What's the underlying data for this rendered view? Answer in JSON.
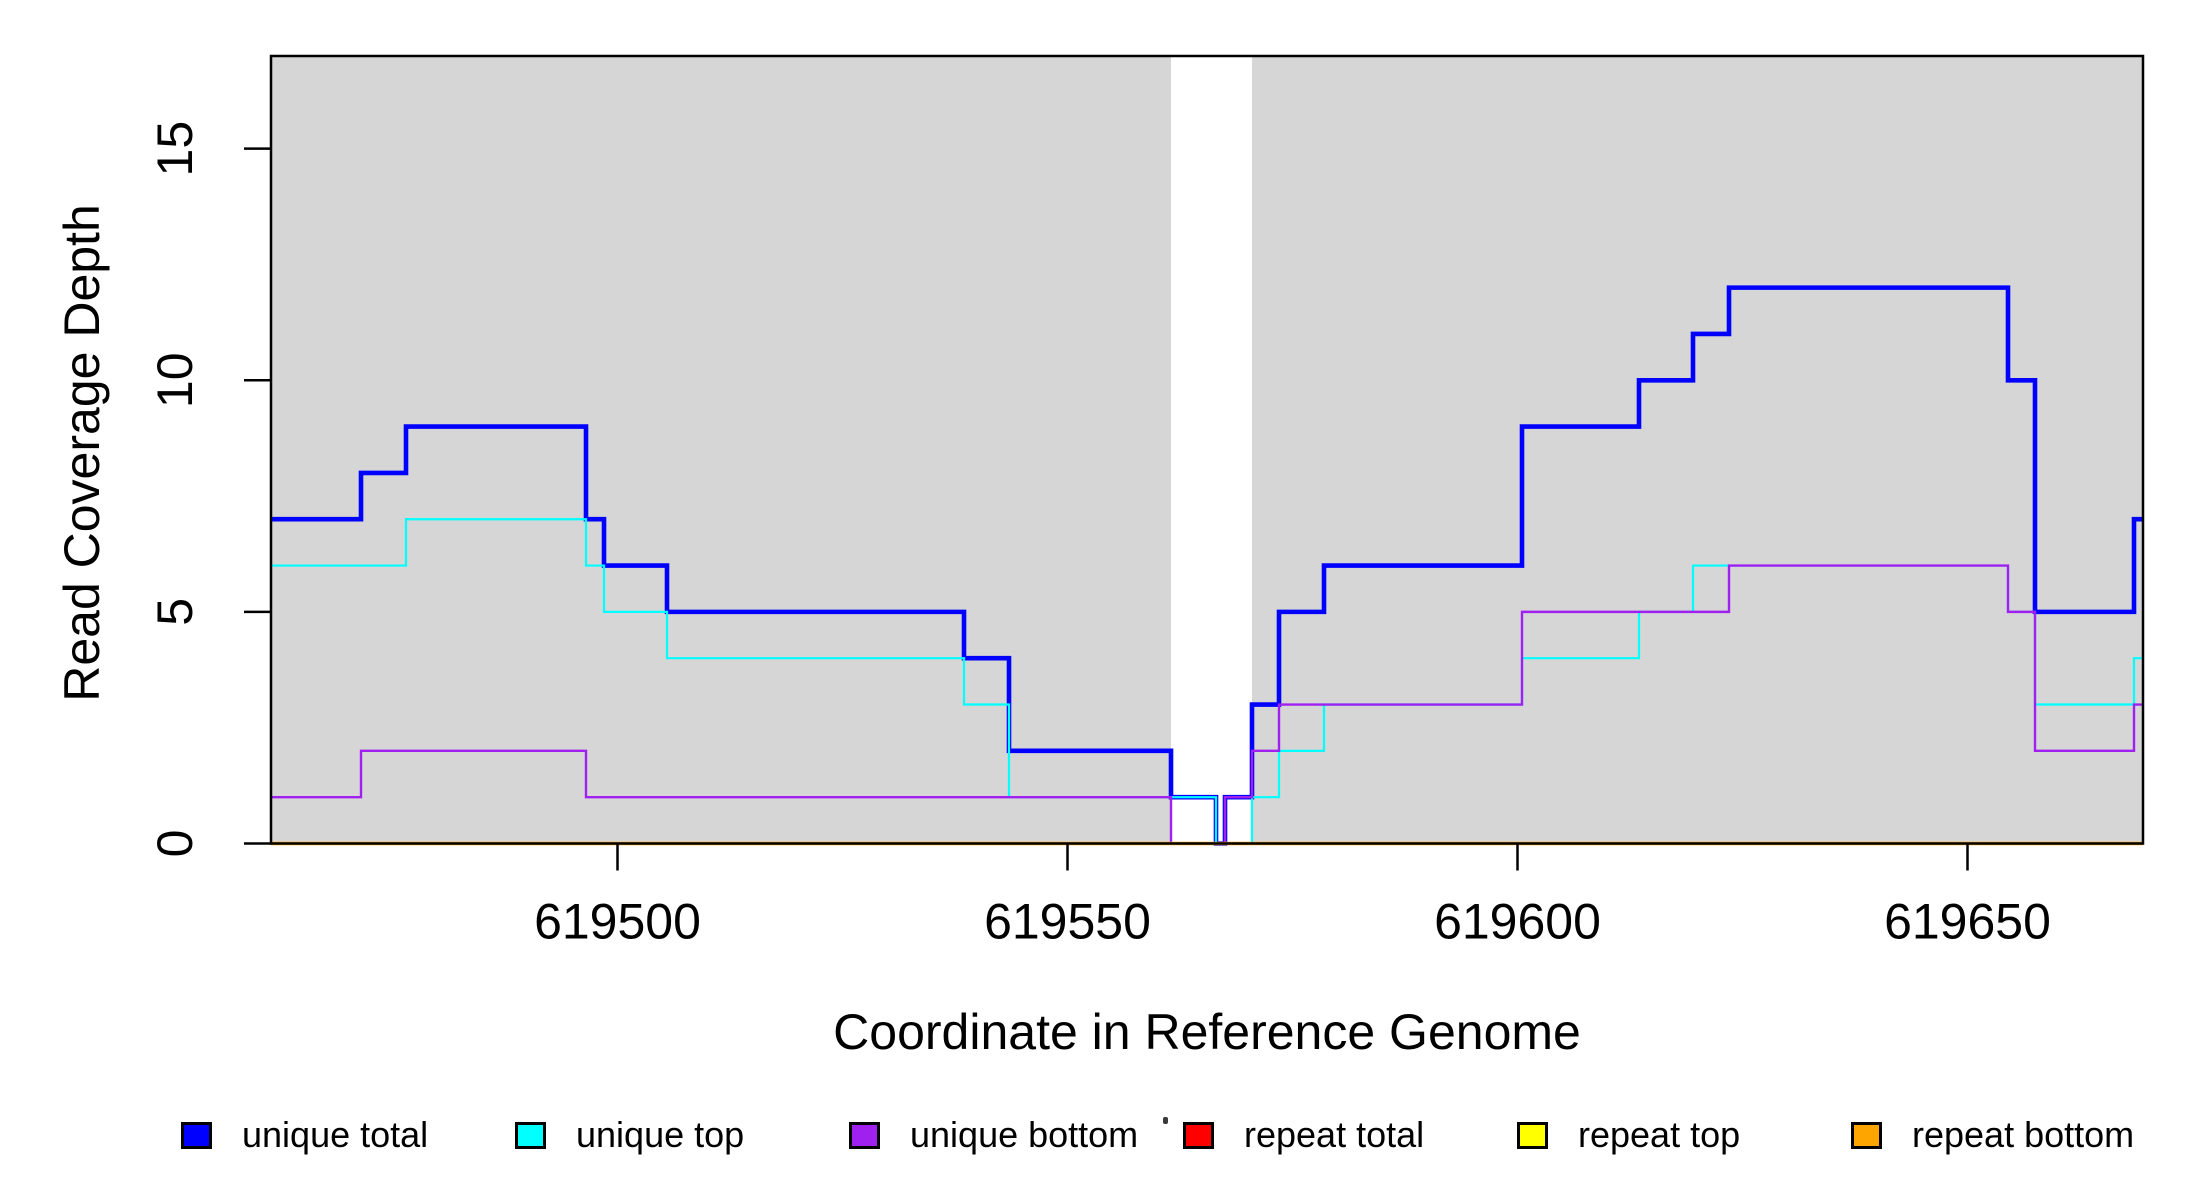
{
  "figure": {
    "background": "#ffffff",
    "plot_bg_color": "#d6d6d6",
    "border_color": "#000000"
  },
  "axes": {
    "x": {
      "title": "Coordinate in Reference Genome",
      "tick_values": [
        619500,
        619550,
        619600,
        619650
      ],
      "tick_labels": [
        "619500",
        "619550",
        "619600",
        "619650"
      ],
      "range": [
        619461.5,
        619669.5
      ]
    },
    "y": {
      "title": "Read Coverage Depth",
      "tick_values": [
        0,
        5,
        10,
        15
      ],
      "tick_labels": [
        "0",
        "5",
        "10",
        "15"
      ],
      "range": [
        0,
        17
      ]
    }
  },
  "plot": {
    "gap_region": {
      "from": 619561.5,
      "to": 619570.5,
      "color": "#ffffff"
    }
  },
  "chart_data": {
    "type": "line",
    "subtype": "step",
    "xlabel": "Coordinate in Reference Genome",
    "ylabel": "Read Coverage Depth",
    "xlim": [
      619461.5,
      619669.5
    ],
    "ylim": [
      0,
      17
    ],
    "grid": false,
    "legend_position": "bottom",
    "x_boundaries": [
      619461.5,
      619471.5,
      619476.5,
      619496.5,
      619498.5,
      619505.5,
      619538.5,
      619543.5,
      619561.5,
      619566.5,
      619567.5,
      619570.5,
      619573.5,
      619578.5,
      619600.5,
      619613.5,
      619619.5,
      619623.5,
      619654.5,
      619657.5,
      619668.5,
      619669.5
    ],
    "series": [
      {
        "name": "unique total",
        "color": "#0000ff",
        "stroke_width": 4.6,
        "values": [
          7,
          8,
          9,
          7,
          6,
          5,
          4,
          2,
          1,
          0,
          1,
          3,
          5,
          6,
          9,
          10,
          11,
          12,
          10,
          5,
          7
        ]
      },
      {
        "name": "unique top",
        "color": "#00ffff",
        "stroke_width": 2.2,
        "values": [
          6,
          6,
          7,
          6,
          5,
          4,
          3,
          1,
          1,
          0,
          0,
          1,
          2,
          3,
          4,
          5,
          6,
          6,
          5,
          3,
          4
        ]
      },
      {
        "name": "unique bottom",
        "color": "#a020f0",
        "stroke_width": 2.4,
        "values": [
          1,
          2,
          2,
          1,
          1,
          1,
          1,
          1,
          0,
          0,
          1,
          2,
          3,
          3,
          5,
          5,
          5,
          6,
          5,
          2,
          3
        ]
      },
      {
        "name": "repeat total",
        "color": "#ff0000",
        "stroke_width": 2.2,
        "values": [
          0,
          0,
          0,
          0,
          0,
          0,
          0,
          0,
          0,
          0,
          0,
          0,
          0,
          0,
          0,
          0,
          0,
          0,
          0,
          0,
          0
        ]
      },
      {
        "name": "repeat top",
        "color": "#ffff00",
        "stroke_width": 2.2,
        "values": [
          0,
          0,
          0,
          0,
          0,
          0,
          0,
          0,
          0,
          0,
          0,
          0,
          0,
          0,
          0,
          0,
          0,
          0,
          0,
          0,
          0
        ]
      },
      {
        "name": "repeat bottom",
        "color": "#ffa500",
        "stroke_width": 3.6,
        "values": [
          0,
          0,
          0,
          0,
          0,
          0,
          0,
          0,
          0,
          0,
          0,
          0,
          0,
          0,
          0,
          0,
          0,
          0,
          0,
          0,
          0
        ]
      }
    ]
  },
  "legend": {
    "entries": [
      {
        "label": "unique total",
        "color": "#0000ff"
      },
      {
        "label": "unique top",
        "color": "#00ffff"
      },
      {
        "label": "unique bottom",
        "color": "#a020f0"
      },
      {
        "label": "repeat total",
        "color": "#ff0000"
      },
      {
        "label": "repeat top",
        "color": "#ffff00"
      },
      {
        "label": "repeat bottom",
        "color": "#ffa500"
      }
    ],
    "stray_mark": true
  }
}
